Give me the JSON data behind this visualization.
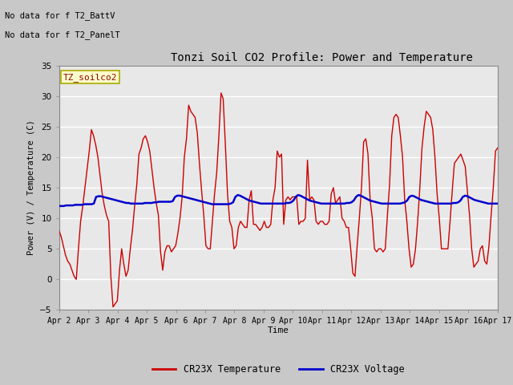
{
  "title": "Tonzi Soil CO2 Profile: Power and Temperature",
  "xlabel": "Time",
  "ylabel": "Power (V) / Temperature (C)",
  "xlim": [
    0,
    15
  ],
  "ylim": [
    -5,
    35
  ],
  "yticks": [
    -5,
    0,
    5,
    10,
    15,
    20,
    25,
    30,
    35
  ],
  "xtick_labels": [
    "Apr 2",
    "Apr 3",
    "Apr 4",
    "Apr 5",
    "Apr 6",
    "Apr 7",
    "Apr 8",
    "Apr 9",
    "Apr 10",
    "Apr 11",
    "Apr 12",
    "Apr 13",
    "Apr 14",
    "Apr 15",
    "Apr 16",
    "Apr 17"
  ],
  "no_data_text1": "No data for f T2_BattV",
  "no_data_text2": "No data for f T2_PanelT",
  "legend_label": "TZ_soilco2",
  "fig_bg_color": "#d0d0d0",
  "plot_bg_color": "#e8e8e8",
  "grid_color": "#ffffff",
  "temp_color": "#cc0000",
  "volt_color": "#0000cc",
  "legend1": "CR23X Temperature",
  "legend2": "CR23X Voltage",
  "temp_data": [
    8.0,
    7.0,
    5.5,
    4.0,
    3.0,
    2.5,
    1.5,
    0.5,
    0.0,
    5.0,
    9.5,
    12.0,
    15.0,
    18.0,
    21.0,
    24.5,
    23.5,
    22.0,
    20.0,
    17.0,
    14.0,
    12.0,
    10.5,
    9.5,
    0.5,
    -4.5,
    -4.0,
    -3.5,
    1.5,
    5.0,
    2.5,
    0.5,
    1.5,
    5.0,
    8.0,
    12.0,
    15.5,
    20.5,
    21.5,
    23.0,
    23.5,
    22.5,
    21.0,
    18.0,
    15.0,
    12.5,
    10.5,
    4.5,
    1.5,
    4.5,
    5.5,
    5.5,
    4.5,
    5.0,
    5.5,
    7.5,
    10.0,
    13.5,
    20.0,
    23.0,
    28.5,
    27.5,
    27.0,
    26.5,
    24.0,
    19.0,
    14.5,
    10.5,
    5.5,
    5.0,
    5.0,
    9.5,
    14.0,
    17.5,
    23.5,
    30.5,
    29.5,
    22.0,
    14.0,
    9.5,
    8.5,
    5.0,
    5.5,
    8.5,
    9.5,
    9.0,
    8.5,
    8.5,
    13.0,
    14.5,
    9.0,
    9.0,
    8.5,
    8.0,
    8.5,
    9.5,
    8.5,
    8.5,
    9.0,
    13.0,
    15.0,
    21.0,
    20.0,
    20.5,
    9.0,
    13.0,
    13.5,
    13.0,
    13.5,
    13.5,
    13.5,
    9.0,
    9.5,
    9.5,
    10.0,
    19.5,
    13.0,
    13.5,
    13.0,
    9.5,
    9.0,
    9.5,
    9.5,
    9.0,
    9.0,
    9.5,
    14.0,
    15.0,
    12.5,
    13.0,
    13.5,
    10.0,
    9.5,
    8.5,
    8.5,
    5.0,
    1.0,
    0.5,
    5.5,
    10.0,
    15.0,
    22.5,
    23.0,
    20.5,
    13.0,
    10.0,
    5.0,
    4.5,
    5.0,
    5.0,
    4.5,
    5.0,
    10.5,
    15.5,
    23.5,
    26.5,
    27.0,
    26.5,
    23.5,
    20.0,
    13.0,
    9.5,
    5.0,
    2.0,
    2.5,
    5.0,
    9.5,
    15.0,
    21.5,
    25.0,
    27.5,
    27.0,
    26.5,
    24.5,
    20.0,
    14.0,
    10.0,
    5.0,
    5.0,
    5.0,
    5.0,
    9.5,
    14.5,
    19.0,
    19.5,
    20.0,
    20.5,
    19.5,
    18.5,
    14.5,
    10.5,
    5.0,
    2.0,
    2.5,
    3.0,
    5.0,
    5.5,
    3.0,
    2.5,
    5.5,
    10.5,
    15.0,
    21.0,
    21.5
  ],
  "volt_data": [
    12.0,
    12.0,
    12.0,
    12.1,
    12.1,
    12.1,
    12.1,
    12.2,
    12.2,
    12.2,
    12.2,
    12.3,
    12.3,
    12.3,
    12.3,
    12.4,
    13.5,
    13.6,
    13.6,
    13.5,
    13.4,
    13.3,
    13.2,
    13.1,
    13.0,
    12.9,
    12.8,
    12.7,
    12.6,
    12.5,
    12.5,
    12.4,
    12.4,
    12.4,
    12.4,
    12.4,
    12.4,
    12.5,
    12.5,
    12.5,
    12.5,
    12.6,
    12.6,
    12.7,
    12.7,
    12.7,
    12.7,
    12.7,
    12.7,
    12.8,
    13.5,
    13.7,
    13.7,
    13.6,
    13.5,
    13.4,
    13.3,
    13.2,
    13.1,
    13.0,
    12.9,
    12.8,
    12.7,
    12.6,
    12.5,
    12.4,
    12.3,
    12.3,
    12.3,
    12.3,
    12.3,
    12.3,
    12.3,
    12.3,
    12.4,
    12.6,
    13.5,
    13.8,
    13.7,
    13.5,
    13.3,
    13.1,
    12.9,
    12.8,
    12.7,
    12.6,
    12.5,
    12.4,
    12.4,
    12.4,
    12.4,
    12.4,
    12.4,
    12.4,
    12.4,
    12.4,
    12.4,
    12.4,
    12.5,
    12.5,
    12.6,
    12.9,
    13.5,
    13.8,
    13.7,
    13.5,
    13.3,
    13.1,
    12.9,
    12.8,
    12.7,
    12.6,
    12.5,
    12.4,
    12.4,
    12.4,
    12.4,
    12.4,
    12.4,
    12.4,
    12.4,
    12.4,
    12.4,
    12.4,
    12.5,
    12.5,
    12.6,
    12.9,
    13.5,
    13.8,
    13.7,
    13.5,
    13.3,
    13.1,
    12.9,
    12.8,
    12.7,
    12.6,
    12.5,
    12.4,
    12.4,
    12.4,
    12.4,
    12.4,
    12.4,
    12.4,
    12.4,
    12.4,
    12.5,
    12.6,
    12.9,
    13.5,
    13.7,
    13.6,
    13.4,
    13.2,
    13.0,
    12.9,
    12.8,
    12.7,
    12.6,
    12.5,
    12.4,
    12.4,
    12.4,
    12.4,
    12.4,
    12.4,
    12.4,
    12.4,
    12.5,
    12.5,
    12.6,
    12.9,
    13.5,
    13.7,
    13.6,
    13.4,
    13.2,
    13.0,
    12.9,
    12.8,
    12.7,
    12.6,
    12.5,
    12.4,
    12.4,
    12.4,
    12.4,
    12.4
  ]
}
